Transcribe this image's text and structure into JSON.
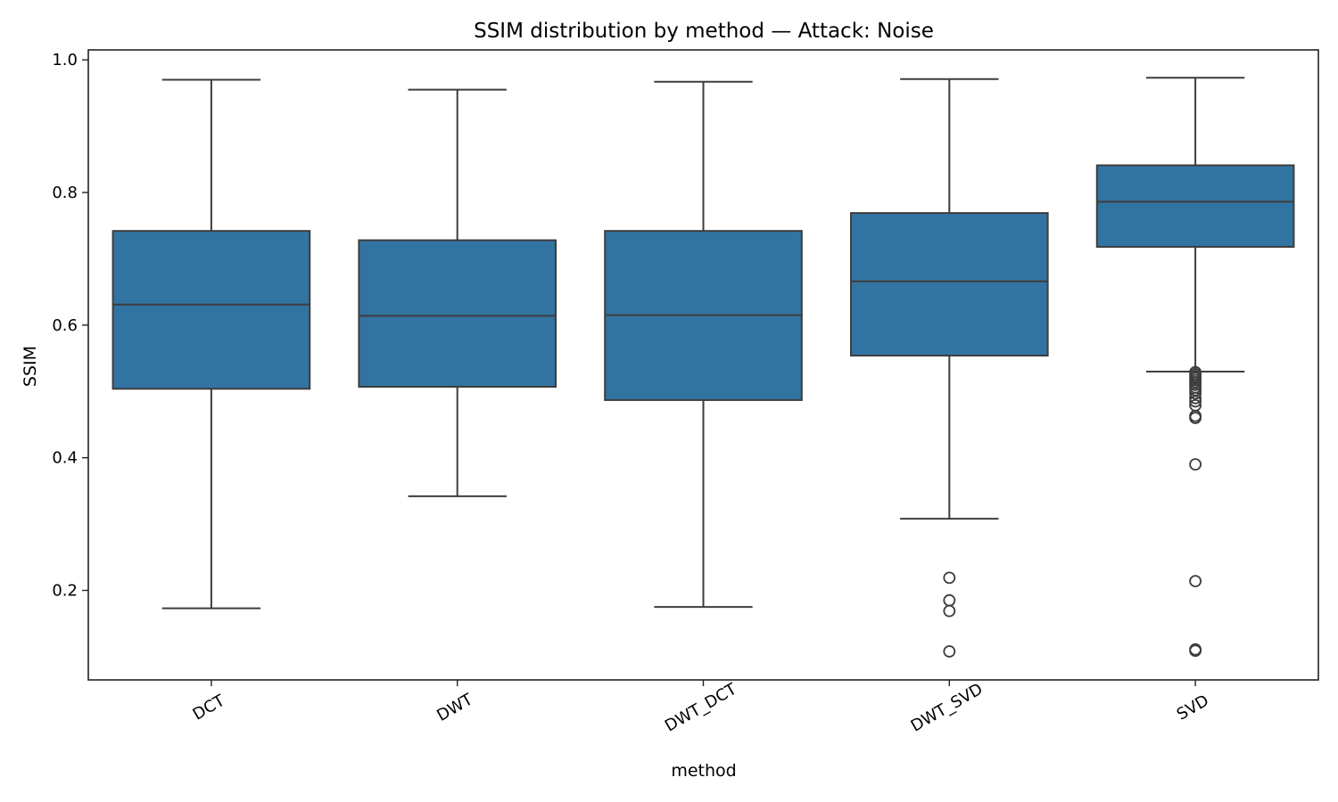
{
  "chart_data": {
    "type": "box",
    "title": "SSIM distribution by method — Attack: Noise",
    "xlabel": "method",
    "ylabel": "SSIM",
    "ylim": [
      0.065,
      1.015
    ],
    "yticks": [
      0.2,
      0.4,
      0.6,
      0.8,
      1.0
    ],
    "ytick_labels": [
      "0.2",
      "0.4",
      "0.6",
      "0.8",
      "1.0"
    ],
    "grid": false,
    "box_color": "#3274a1",
    "categories": [
      "DCT",
      "DWT",
      "DWT_DCT",
      "DWT_SVD",
      "SVD"
    ],
    "boxes": [
      {
        "category": "DCT",
        "whisker_low": 0.173,
        "q1": 0.504,
        "median": 0.631,
        "q3": 0.742,
        "whisker_high": 0.97,
        "fliers": []
      },
      {
        "category": "DWT",
        "whisker_low": 0.342,
        "q1": 0.507,
        "median": 0.614,
        "q3": 0.728,
        "whisker_high": 0.955,
        "fliers": []
      },
      {
        "category": "DWT_DCT",
        "whisker_low": 0.175,
        "q1": 0.487,
        "median": 0.615,
        "q3": 0.742,
        "whisker_high": 0.967,
        "fliers": []
      },
      {
        "category": "DWT_SVD",
        "whisker_low": 0.308,
        "q1": 0.554,
        "median": 0.666,
        "q3": 0.769,
        "whisker_high": 0.971,
        "fliers": [
          0.219,
          0.185,
          0.169,
          0.108
        ]
      },
      {
        "category": "SVD",
        "whisker_low": 0.53,
        "q1": 0.718,
        "median": 0.786,
        "q3": 0.841,
        "whisker_high": 0.973,
        "fliers": [
          0.529,
          0.526,
          0.523,
          0.52,
          0.517,
          0.514,
          0.51,
          0.506,
          0.502,
          0.497,
          0.49,
          0.485,
          0.479,
          0.463,
          0.46,
          0.39,
          0.214,
          0.111,
          0.109
        ]
      }
    ]
  }
}
